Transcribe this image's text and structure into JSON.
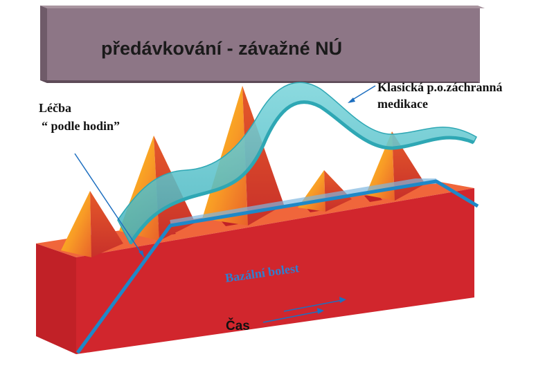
{
  "title": "předávkování - závažné NÚ",
  "labels": {
    "lecba_line1": "Léčba",
    "lecba_line2": "“ podle  hodin”",
    "klasicka_line1": "Klasická p.o.záchranná",
    "klasicka_line2": "medikace",
    "bazalni": "Bazální bolest",
    "cas": "Čas"
  },
  "colors": {
    "banner_front": "#8d7686",
    "banner_side": "#6f5b69",
    "banner_top": "#a8949f",
    "block_front": "#d1262d",
    "block_top": "#f0663b",
    "block_side": "#b81d25",
    "ribbon": "#58c4cc",
    "ribbon_edge": "#2ea7b4",
    "line_blue": "#1e88c8",
    "label_blue": "#2f7fd0"
  }
}
